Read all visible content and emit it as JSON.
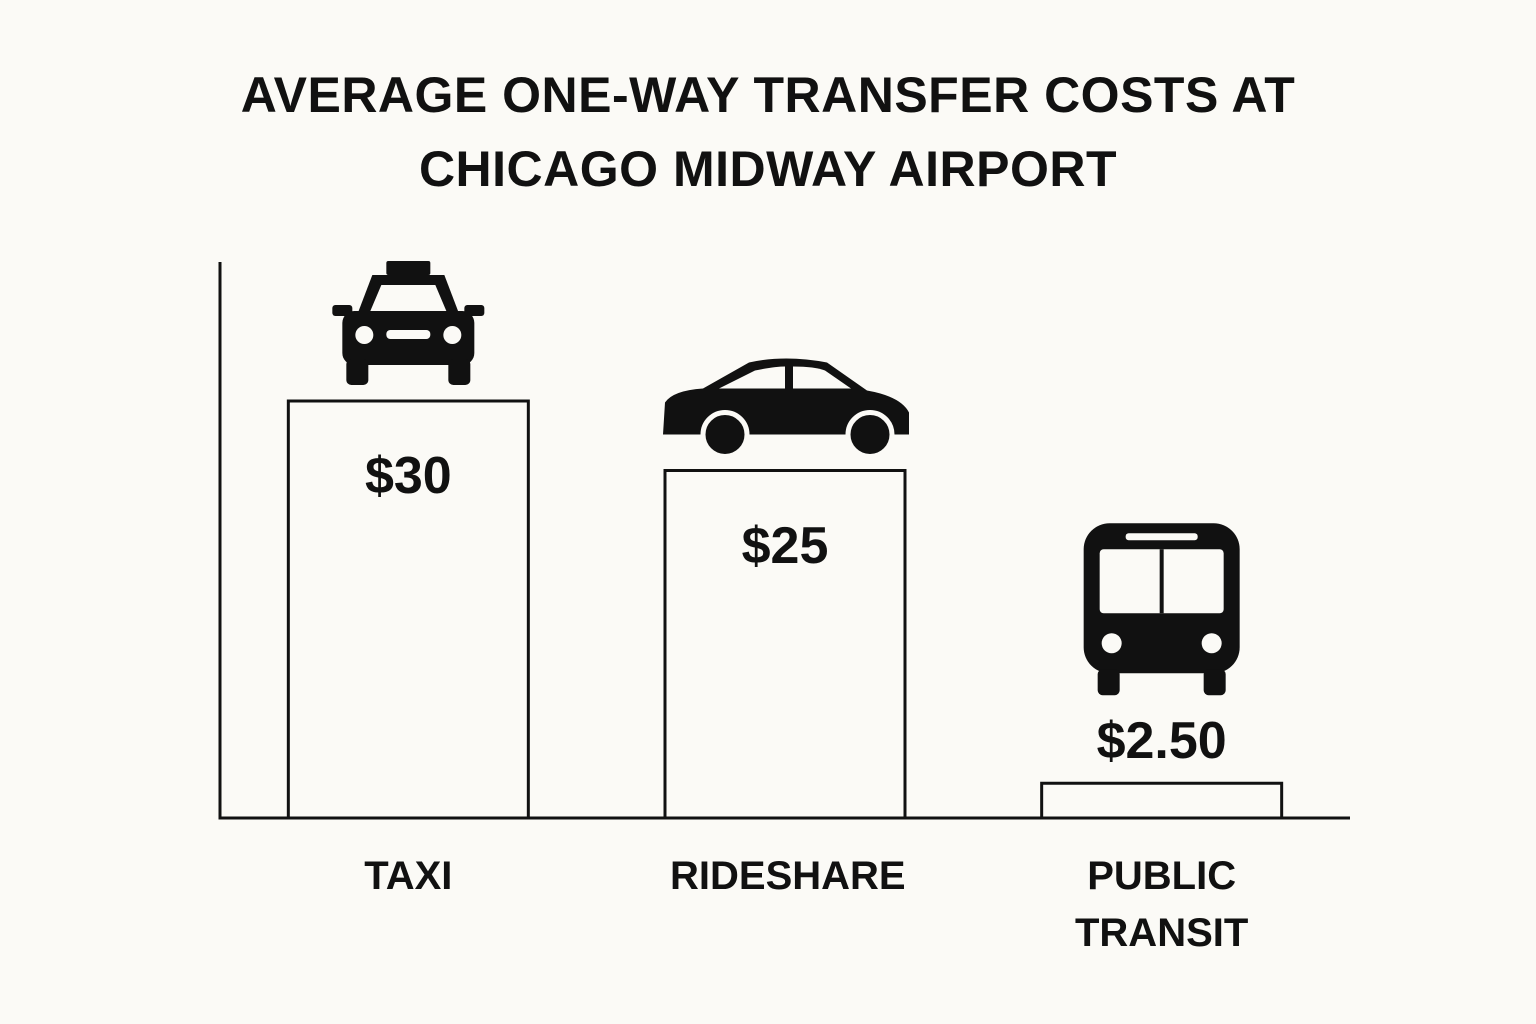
{
  "chart_data": {
    "type": "bar",
    "title": "AVERAGE ONE-WAY TRANSFER COSTS AT CHICAGO MIDWAY AIRPORT",
    "categories": [
      "TAXI",
      "RIDESHARE",
      "PUBLIC TRANSIT"
    ],
    "values": [
      30,
      25,
      2.5
    ],
    "value_labels": [
      "$30",
      "$25",
      "$2.50"
    ],
    "color": "#111111",
    "ylim": [
      0,
      40
    ]
  }
}
